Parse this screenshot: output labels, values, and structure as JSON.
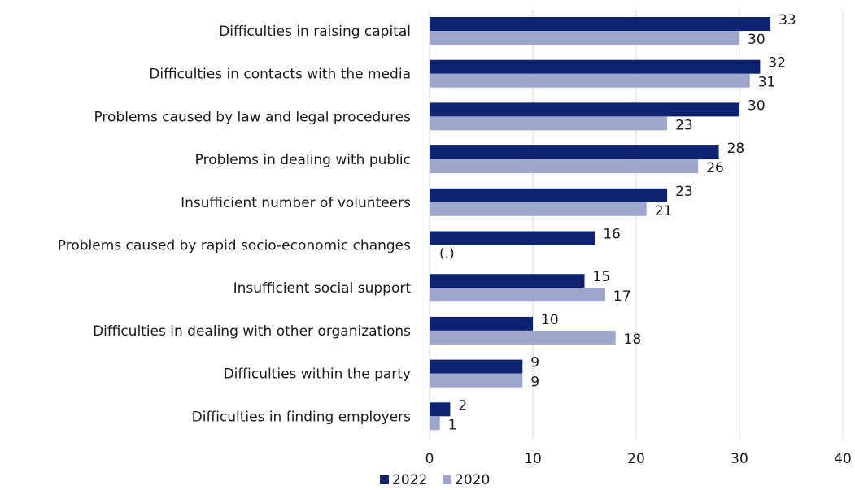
{
  "chart_data": {
    "type": "bar",
    "orientation": "horizontal",
    "categories": [
      "Difficulties in raising capital",
      "Difficulties in contacts with the media",
      "Problems caused by law and legal procedures",
      "Problems in dealing with public",
      "Insufficient number of volunteers",
      "Problems caused by rapid socio-economic changes",
      "Insufficient social support",
      "Difficulties in dealing with other organizations",
      "Difficulties within the party",
      "Difficulties in finding employers"
    ],
    "series": [
      {
        "name": "2022",
        "color": "#0e2272",
        "values": [
          33,
          32,
          30,
          28,
          23,
          16,
          15,
          10,
          9,
          2
        ],
        "labels": [
          "33",
          "32",
          "30",
          "28",
          "23",
          "16",
          "15",
          "10",
          "9",
          "2"
        ]
      },
      {
        "name": "2020",
        "color": "#9da6cc",
        "values": [
          30,
          31,
          23,
          26,
          21,
          null,
          17,
          18,
          9,
          1
        ],
        "labels": [
          "30",
          "31",
          "23",
          "26",
          "21",
          "(.)",
          "17",
          "18",
          "9",
          "1"
        ]
      }
    ],
    "xlim": [
      0,
      40
    ],
    "x_ticks": [
      "0",
      "10",
      "20",
      "30",
      "40"
    ],
    "grid": "vertical",
    "legend": "bottom"
  }
}
